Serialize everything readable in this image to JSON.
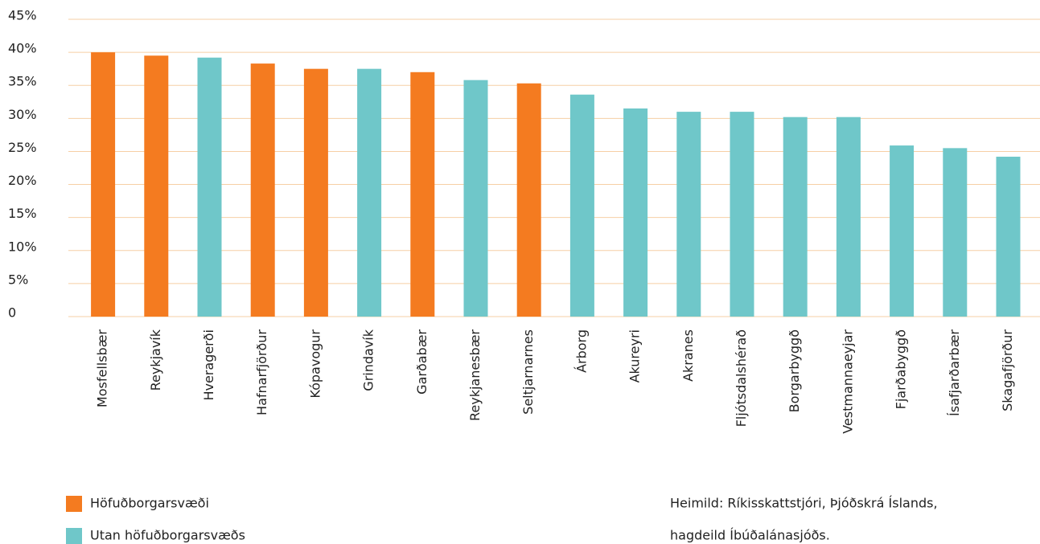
{
  "chart_data": {
    "type": "bar",
    "categories": [
      "Mosfellsbær",
      "Reykjavík",
      "Hveragerði",
      "Hafnarfjörður",
      "Kópavogur",
      "Grindavík",
      "Garðabær",
      "Reykjanesbær",
      "Seltjarnarnes",
      "Árborg",
      "Akureyri",
      "Akranes",
      "Fljótsdalshérað",
      "Borgarbyggð",
      "Vestmannaeyjar",
      "Fjarðabyggð",
      "Ísafjarðarbær",
      "Skagafjörður"
    ],
    "series": [
      {
        "name": "Höfuðborgarsvæði",
        "color": "#f47b20",
        "values": [
          40.0,
          39.5,
          null,
          38.3,
          37.5,
          null,
          37.0,
          null,
          35.3,
          null,
          null,
          null,
          null,
          null,
          null,
          null,
          null,
          null
        ]
      },
      {
        "name": "Utan höfuðborgarsvæðs",
        "color": "#6fc7c9",
        "values": [
          null,
          null,
          39.2,
          null,
          null,
          37.5,
          null,
          35.8,
          null,
          33.6,
          31.5,
          31.0,
          31.0,
          30.2,
          30.2,
          25.9,
          25.5,
          24.2
        ]
      }
    ],
    "ylim": [
      0,
      45
    ],
    "yticks": [
      0,
      {
        "value": 5,
        "label": "5%"
      },
      {
        "value": 10,
        "label": "10%"
      },
      {
        "value": 15,
        "label": "15%"
      },
      {
        "value": 20,
        "label": "20%"
      },
      {
        "value": 25,
        "label": "25%"
      },
      {
        "value": 30,
        "label": "30%"
      },
      {
        "value": 35,
        "label": "35%"
      },
      {
        "value": 40,
        "label": "40%"
      },
      {
        "value": 45,
        "label": "45%"
      }
    ],
    "grid": true,
    "source": [
      "Heimild: Ríkisskattstjóri, Þjóðskrá Íslands,",
      "hagdeild Íbúðalánasjóðs."
    ]
  }
}
